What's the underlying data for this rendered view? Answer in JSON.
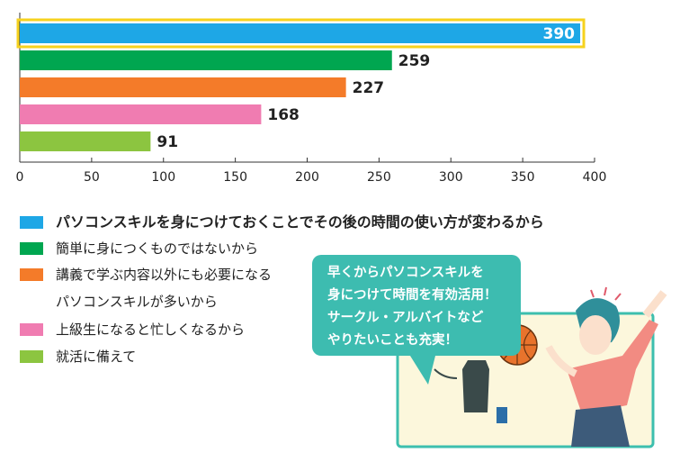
{
  "chart_data": {
    "type": "bar",
    "categories": [
      "パソコンスキルを身につけておくことでその後の時間の使い方が変わるから",
      "簡単に身につくものではないから",
      "講義で学ぶ内容以外にも必要になるパソコンスキルが多いから",
      "上級生になると忙しくなるから",
      "就活に備えて"
    ],
    "values": [
      390,
      259,
      227,
      168,
      91
    ],
    "colors": [
      "#1ea7e6",
      "#00a650",
      "#f47b29",
      "#f07cb1",
      "#8cc540"
    ],
    "highlight": 0,
    "highlight_color": "#f6d21e",
    "xlim": [
      0,
      400
    ],
    "xticks": [
      0,
      50,
      100,
      150,
      200,
      250,
      300,
      350,
      400
    ],
    "annotation": [
      "早くからパソコンスキルを",
      "身につけて時間を有効活用！",
      "サークル・アルバイトなど",
      "やりたいことも充実！"
    ]
  }
}
